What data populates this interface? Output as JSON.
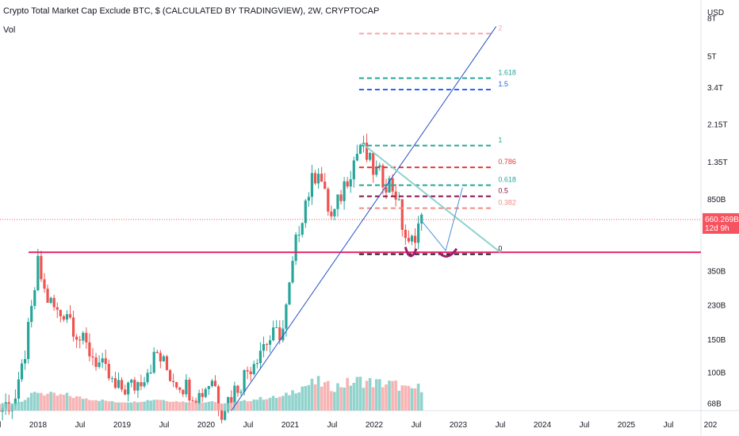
{
  "header": {
    "title": "Crypto Total Market Cap Exclude BTC, $ (CALCULATED BY TRADINGVIEW), 2W, CRYPTOCAP",
    "vol_label": "Vol"
  },
  "price_axis": {
    "currency": "USD",
    "ticks": [
      {
        "label": "8T",
        "value": 8000000000000
      },
      {
        "label": "5T",
        "value": 5000000000000
      },
      {
        "label": "3.4T",
        "value": 3400000000000
      },
      {
        "label": "2.15T",
        "value": 2150000000000
      },
      {
        "label": "1.35T",
        "value": 1350000000000
      },
      {
        "label": "850B",
        "value": 850000000000
      },
      {
        "label": "350B",
        "value": 350000000000
      },
      {
        "label": "230B",
        "value": 230000000000
      },
      {
        "label": "150B",
        "value": 150000000000
      },
      {
        "label": "100B",
        "value": 100000000000
      },
      {
        "label": "68B",
        "value": 68000000000
      }
    ],
    "last_price_label": "660.269B",
    "countdown_label": "12d 9h"
  },
  "time_axis": {
    "ticks": [
      "Jul",
      "2018",
      "Jul",
      "2019",
      "Jul",
      "2020",
      "Jul",
      "2021",
      "Jul",
      "2022",
      "Jul",
      "2023",
      "Jul",
      "2024",
      "Jul",
      "2025",
      "Jul",
      "202"
    ]
  },
  "fib_levels": [
    {
      "label": "2",
      "color": "#f7a7a7"
    },
    {
      "label": "1.618",
      "color": "#26a69a"
    },
    {
      "label": "1.5",
      "color": "#2962ff"
    },
    {
      "label": "1",
      "color": "#26a69a"
    },
    {
      "label": "0.786",
      "color": "#e53935"
    },
    {
      "label": "0.618",
      "color": "#26a69a"
    },
    {
      "label": "0.5",
      "color": "#880e4f"
    },
    {
      "label": "0.382",
      "color": "#f28b82"
    },
    {
      "label": "0",
      "color": "#131722"
    }
  ],
  "colors": {
    "up": "#26a69a",
    "down": "#ef5350",
    "vol_up": "#80cbc4",
    "vol_down": "#f7a7a7",
    "support": "#e91e63",
    "trendline": "#2750c7",
    "downtrend": "#8fd3cf",
    "price_label_bg": "#f7525f",
    "accent_curve": "#9c1d6a"
  },
  "chart_data": {
    "type": "candlestick",
    "title": "Crypto Total Market Cap Exclude BTC, $ (CALCULATED BY TRADINGVIEW), 2W, CRYPTOCAP",
    "interval": "2W",
    "y_scale": "log",
    "y_range": [
      62000000000,
      9500000000000
    ],
    "x_range": [
      "2017-06",
      "2026-01"
    ],
    "last_price": 660269000000,
    "support_level": 440000000000,
    "fib_prices": {
      "0": 430000000000,
      "0.382": 760000000000,
      "0.5": 880000000000,
      "0.618": 1010000000000,
      "0.786": 1260000000000,
      "1": 1650000000000,
      "1.5": 3300000000000,
      "1.618": 3800000000000,
      "2": 6600000000000
    },
    "close_approx": [
      {
        "date": "2017-07",
        "close": 62000000000
      },
      {
        "date": "2017-10",
        "close": 72000000000
      },
      {
        "date": "2017-12",
        "close": 200000000000
      },
      {
        "date": "2018-01",
        "close": 380000000000
      },
      {
        "date": "2018-02",
        "close": 260000000000
      },
      {
        "date": "2018-04",
        "close": 200000000000
      },
      {
        "date": "2018-05",
        "close": 220000000000
      },
      {
        "date": "2018-07",
        "close": 150000000000
      },
      {
        "date": "2018-09",
        "close": 120000000000
      },
      {
        "date": "2018-11",
        "close": 95000000000
      },
      {
        "date": "2018-12",
        "close": 80000000000
      },
      {
        "date": "2019-03",
        "close": 85000000000
      },
      {
        "date": "2019-06",
        "close": 125000000000
      },
      {
        "date": "2019-08",
        "close": 95000000000
      },
      {
        "date": "2019-12",
        "close": 75000000000
      },
      {
        "date": "2020-02",
        "close": 95000000000
      },
      {
        "date": "2020-03",
        "close": 62000000000
      },
      {
        "date": "2020-06",
        "close": 90000000000
      },
      {
        "date": "2020-09",
        "close": 140000000000
      },
      {
        "date": "2020-12",
        "close": 170000000000
      },
      {
        "date": "2021-01",
        "close": 300000000000
      },
      {
        "date": "2021-02",
        "close": 550000000000
      },
      {
        "date": "2021-03",
        "close": 800000000000
      },
      {
        "date": "2021-05",
        "close": 1300000000000
      },
      {
        "date": "2021-06",
        "close": 850000000000
      },
      {
        "date": "2021-07",
        "close": 650000000000
      },
      {
        "date": "2021-09",
        "close": 1100000000000
      },
      {
        "date": "2021-11",
        "close": 1650000000000
      },
      {
        "date": "2022-01",
        "close": 1200000000000
      },
      {
        "date": "2022-03",
        "close": 1050000000000
      },
      {
        "date": "2022-04",
        "close": 950000000000
      },
      {
        "date": "2022-05",
        "close": 620000000000
      },
      {
        "date": "2022-06",
        "close": 450000000000
      },
      {
        "date": "2022-07",
        "close": 600000000000
      },
      {
        "date": "2022-08",
        "close": 660000000000
      }
    ]
  }
}
